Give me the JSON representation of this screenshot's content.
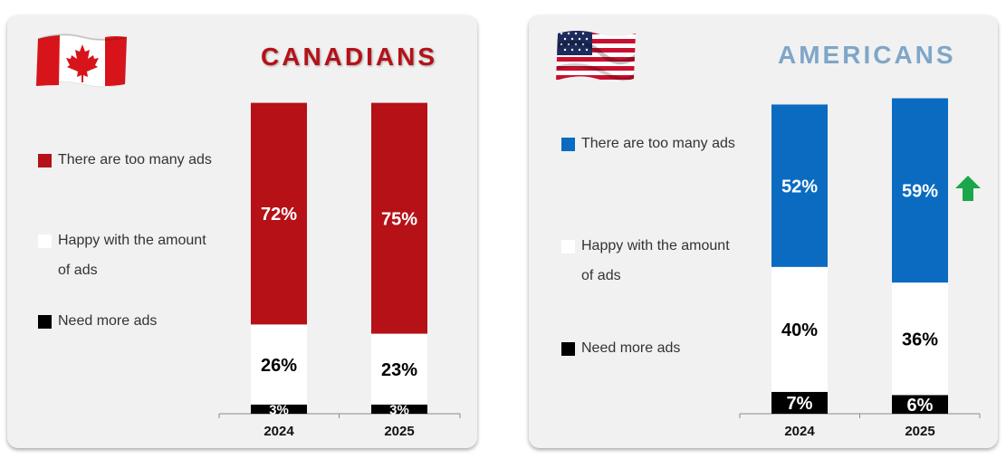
{
  "chart_data": [
    {
      "type": "bar",
      "stacked": true,
      "title": "CANADIANS",
      "categories": [
        "2024",
        "2025"
      ],
      "series": [
        {
          "name": "There are too many ads",
          "color": "#b51117",
          "label_color": "#ffffff",
          "values": [
            72,
            75
          ],
          "labels": [
            "72%",
            "75%"
          ]
        },
        {
          "name": "Happy with the amount of ads",
          "color": "#ffffff",
          "label_color": "#000000",
          "values": [
            26,
            23
          ],
          "labels": [
            "26%",
            "23%"
          ]
        },
        {
          "name": "Need more ads",
          "color": "#000000",
          "label_color": "#ffffff",
          "values": [
            3,
            3
          ],
          "labels": [
            "3%",
            "3%"
          ]
        }
      ],
      "legend": [
        {
          "name": "There are too many ads",
          "color": "#b51117"
        },
        {
          "name_line1": "Happy with the amount",
          "name_line2": "of ads",
          "color": "#ffffff"
        },
        {
          "name": "Need more ads",
          "color": "#000000"
        }
      ],
      "ylim": [
        0,
        100
      ]
    },
    {
      "type": "bar",
      "stacked": true,
      "title": "AMERICANS",
      "categories": [
        "2024",
        "2025"
      ],
      "series": [
        {
          "name": "There are too many ads",
          "color": "#0a6bc1",
          "label_color": "#ffffff",
          "values": [
            52,
            59
          ],
          "labels": [
            "52%",
            "59%"
          ]
        },
        {
          "name": "Happy with the amount of ads",
          "color": "#ffffff",
          "label_color": "#000000",
          "values": [
            40,
            36
          ],
          "labels": [
            "40%",
            "36%"
          ]
        },
        {
          "name": "Need more ads",
          "color": "#000000",
          "label_color": "#ffffff",
          "values": [
            7,
            6
          ],
          "labels": [
            "7%",
            "6%"
          ]
        }
      ],
      "legend": [
        {
          "name": "There are too many ads",
          "color": "#0a6bc1"
        },
        {
          "name_line1": "Happy with the amount",
          "name_line2": "of ads",
          "color": "#ffffff"
        },
        {
          "name": "Need more ads",
          "color": "#000000"
        }
      ],
      "ylim": [
        0,
        100
      ],
      "annotation": "up-arrow"
    }
  ]
}
